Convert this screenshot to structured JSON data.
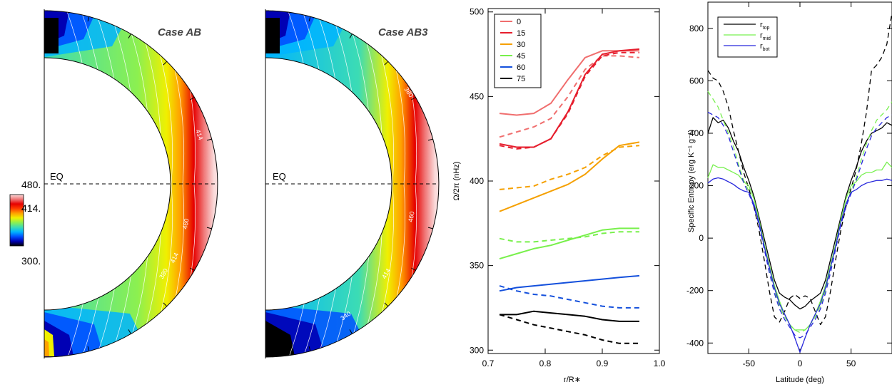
{
  "colors": {
    "cmap": [
      "#000000",
      "#0000b4",
      "#0050ff",
      "#00b4ff",
      "#3cdcb4",
      "#8cf050",
      "#f0f000",
      "#ffa000",
      "#ff3c00",
      "#e60000",
      "#f07878",
      "#fadcdc"
    ],
    "lat": [
      "#f06e6e",
      "#e61e2d",
      "#f5a000",
      "#78f04b",
      "#1450dc",
      "#000000"
    ],
    "entropy": [
      "#000000",
      "#78f050",
      "#2828dc"
    ]
  },
  "chart_data": [
    {
      "type": "heatmap",
      "title": "Case AB",
      "eq_label": "EQ",
      "colorbar": {
        "min_label": "300.",
        "mid_label": "414.",
        "max_label": "480."
      },
      "contour_labels": [
        "340",
        "380",
        "414",
        "460",
        "380",
        "414",
        "460",
        "340"
      ]
    },
    {
      "type": "heatmap",
      "title": "Case AB3",
      "eq_label": "EQ",
      "contour_labels": [
        "380",
        "414",
        "460",
        "340"
      ]
    },
    {
      "type": "line",
      "xlabel": "r/R∗",
      "ylabel": "Ω/2π (nHz)",
      "xlim": [
        0.7,
        1.0
      ],
      "ylim": [
        298,
        502
      ],
      "xticks": [
        {
          "v": 0.7,
          "t": "0.7"
        },
        {
          "v": 0.8,
          "t": "0.8"
        },
        {
          "v": 0.9,
          "t": "0.9"
        },
        {
          "v": 1.0,
          "t": "1.0"
        }
      ],
      "yticks": [
        {
          "v": 300,
          "t": "300"
        },
        {
          "v": 350,
          "t": "350"
        },
        {
          "v": 400,
          "t": "400"
        },
        {
          "v": 450,
          "t": "450"
        },
        {
          "v": 500,
          "t": "500"
        }
      ],
      "legend": {
        "position": "top-left",
        "entries": [
          "0",
          "15",
          "30",
          "45",
          "60",
          "75"
        ]
      },
      "x": [
        0.72,
        0.75,
        0.78,
        0.81,
        0.84,
        0.87,
        0.9,
        0.93,
        0.965
      ],
      "series": [
        {
          "name": "0",
          "style": "solid",
          "values": [
            440,
            439,
            440,
            446,
            460,
            473,
            477,
            477,
            477
          ]
        },
        {
          "name": "0",
          "style": "dashed",
          "values": [
            426,
            429,
            432,
            437,
            450,
            466,
            474,
            474,
            473
          ]
        },
        {
          "name": "15",
          "style": "solid",
          "values": [
            422,
            420,
            420,
            425,
            441,
            463,
            475,
            477,
            478
          ]
        },
        {
          "name": "15",
          "style": "dashed",
          "values": [
            421,
            419,
            420,
            425,
            440,
            462,
            474,
            476,
            476
          ]
        },
        {
          "name": "30",
          "style": "solid",
          "values": [
            382,
            386,
            390,
            394,
            398,
            404,
            413,
            421,
            423
          ]
        },
        {
          "name": "30",
          "style": "dashed",
          "values": [
            395,
            396,
            397,
            401,
            404,
            408,
            415,
            420,
            421
          ]
        },
        {
          "name": "45",
          "style": "solid",
          "values": [
            354,
            357,
            360,
            362,
            365,
            368,
            371,
            372,
            372
          ]
        },
        {
          "name": "45",
          "style": "dashed",
          "values": [
            366,
            364,
            364,
            365,
            366,
            367,
            369,
            370,
            370
          ]
        },
        {
          "name": "60",
          "style": "solid",
          "values": [
            335,
            337,
            338,
            339,
            340,
            341,
            342,
            343,
            344
          ]
        },
        {
          "name": "60",
          "style": "dashed",
          "values": [
            338,
            335,
            333,
            332,
            330,
            328,
            326,
            325,
            325
          ]
        },
        {
          "name": "75",
          "style": "solid",
          "values": [
            321,
            321,
            323,
            322,
            321,
            320,
            318,
            317,
            317
          ]
        },
        {
          "name": "75",
          "style": "dashed",
          "values": [
            321,
            318,
            315,
            313,
            311,
            309,
            306,
            304,
            304
          ]
        }
      ]
    },
    {
      "type": "line",
      "xlabel": "Latitude (deg)",
      "ylabel": "Specific Entropy (erg K⁻¹ g⁻¹)",
      "xlim": [
        -90,
        90
      ],
      "ylim": [
        -440,
        900
      ],
      "xticks": [
        {
          "v": -50,
          "t": "-50"
        },
        {
          "v": 0,
          "t": "0"
        },
        {
          "v": 50,
          "t": "50"
        }
      ],
      "yticks": [
        {
          "v": -400,
          "t": "-400"
        },
        {
          "v": -200,
          "t": "-200"
        },
        {
          "v": 0,
          "t": "0"
        },
        {
          "v": 200,
          "t": "200"
        },
        {
          "v": 400,
          "t": "400"
        },
        {
          "v": 600,
          "t": "600"
        },
        {
          "v": 800,
          "t": "800"
        }
      ],
      "legend": {
        "position": "top-left",
        "entries": [
          "r_top",
          "r_mid",
          "r_bot"
        ]
      },
      "x": [
        -90,
        -85,
        -80,
        -75,
        -70,
        -65,
        -60,
        -55,
        -50,
        -45,
        -40,
        -35,
        -30,
        -25,
        -20,
        -15,
        -10,
        -5,
        0,
        5,
        10,
        15,
        20,
        25,
        30,
        35,
        40,
        45,
        50,
        55,
        60,
        65,
        70,
        75,
        80,
        85,
        90
      ],
      "series": [
        {
          "name": "r_top",
          "style": "solid",
          "values": [
            400,
            460,
            440,
            450,
            420,
            370,
            330,
            270,
            220,
            160,
            80,
            0,
            -80,
            -160,
            -210,
            -225,
            -235,
            -255,
            -270,
            -260,
            -240,
            -225,
            -210,
            -160,
            -80,
            0,
            80,
            160,
            220,
            270,
            330,
            370,
            400,
            410,
            420,
            440,
            430
          ]
        },
        {
          "name": "r_top",
          "style": "dashed",
          "values": [
            640,
            610,
            600,
            560,
            500,
            410,
            330,
            250,
            190,
            120,
            30,
            -80,
            -200,
            -300,
            -320,
            -280,
            -230,
            -215,
            -230,
            -220,
            -230,
            -280,
            -330,
            -300,
            -200,
            -80,
            30,
            120,
            190,
            260,
            360,
            480,
            640,
            660,
            690,
            740,
            860
          ]
        },
        {
          "name": "r_mid",
          "style": "solid",
          "values": [
            230,
            280,
            270,
            270,
            260,
            250,
            240,
            215,
            200,
            150,
            70,
            -20,
            -100,
            -180,
            -240,
            -290,
            -330,
            -350,
            -350,
            -350,
            -330,
            -290,
            -240,
            -180,
            -100,
            -20,
            70,
            150,
            200,
            215,
            240,
            250,
            250,
            260,
            260,
            290,
            270
          ]
        },
        {
          "name": "r_mid",
          "style": "dashed",
          "values": [
            560,
            530,
            500,
            450,
            400,
            350,
            280,
            220,
            180,
            130,
            60,
            -30,
            -120,
            -200,
            -260,
            -300,
            -330,
            -350,
            -360,
            -350,
            -330,
            -300,
            -260,
            -200,
            -120,
            -30,
            60,
            130,
            180,
            230,
            300,
            360,
            410,
            450,
            470,
            490,
            520
          ]
        },
        {
          "name": "r_bot",
          "style": "solid",
          "values": [
            210,
            225,
            230,
            225,
            215,
            205,
            190,
            180,
            175,
            130,
            60,
            -30,
            -110,
            -190,
            -250,
            -290,
            -330,
            -380,
            -435,
            -380,
            -330,
            -290,
            -250,
            -190,
            -110,
            -30,
            60,
            130,
            175,
            185,
            200,
            210,
            215,
            220,
            220,
            225,
            220
          ]
        },
        {
          "name": "r_bot",
          "style": "dashed",
          "values": [
            480,
            470,
            460,
            430,
            390,
            330,
            270,
            210,
            170,
            120,
            50,
            -40,
            -130,
            -210,
            -270,
            -310,
            -340,
            -370,
            -380,
            -370,
            -340,
            -310,
            -270,
            -210,
            -130,
            -40,
            50,
            120,
            170,
            220,
            280,
            340,
            390,
            420,
            440,
            460,
            470
          ]
        }
      ]
    }
  ]
}
